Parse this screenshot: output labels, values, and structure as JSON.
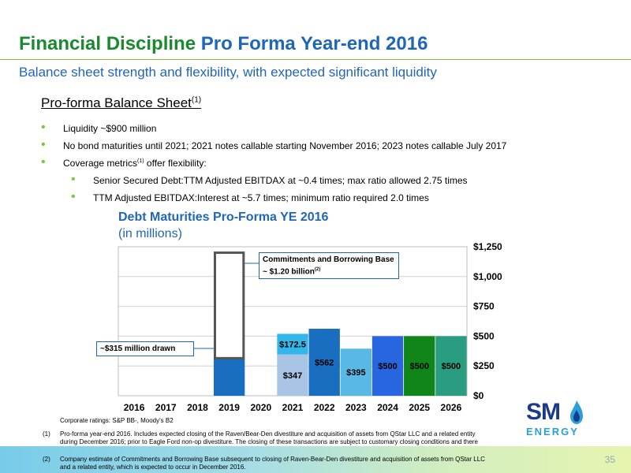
{
  "header": {
    "title_part1": "Financial Discipline",
    "title_part2": "Pro Forma Year-end 2016",
    "subtitle": "Balance sheet strength and flexibility, with expected significant liquidity"
  },
  "section": {
    "heading": "Pro-forma Balance Sheet",
    "heading_sup": "(1)"
  },
  "bullets": {
    "liquidity": "Liquidity ~$900 million",
    "maturities": "No bond maturities until 2021; 2021 notes callable starting November 2016; 2023 notes callable July 2017",
    "coverage_pre": "Coverage metrics",
    "coverage_sup": "(1)",
    "coverage_post": " offer flexibility:",
    "sub1": "Senior Secured Debt:TTM Adjusted EBITDAX at ~0.4 times; max ratio allowed 2.75 times",
    "sub2": "TTM Adjusted EBITDAX:Interest at ~5.7 times; minimum ratio required 2.0 times"
  },
  "chart_data": {
    "type": "bar",
    "title": "Debt Maturities Pro-Forma YE 2016",
    "subtitle": "(in millions)",
    "categories": [
      "2016",
      "2017",
      "2018",
      "2019",
      "2020",
      "2021",
      "2022",
      "2023",
      "2024",
      "2025",
      "2026"
    ],
    "ylim": [
      0,
      1250
    ],
    "yticks": [
      0,
      250,
      500,
      750,
      1000,
      1250
    ],
    "ytick_labels": [
      "$0",
      "$250",
      "$500",
      "$750",
      "$1,000",
      "$1,250"
    ],
    "grid": true,
    "segments": [
      {
        "category": "2019",
        "value": 315,
        "base": 0,
        "color": "#1a6ec0",
        "label": ""
      },
      {
        "category": "2019",
        "value": 885,
        "base": 315,
        "color": "#ffffff",
        "outline": "#555555",
        "label": ""
      },
      {
        "category": "2021",
        "value": 347,
        "base": 0,
        "color": "#a9c4e4",
        "label": "$347"
      },
      {
        "category": "2021",
        "value": 172.5,
        "base": 347,
        "color": "#33b7ea",
        "label": "$172.5"
      },
      {
        "category": "2022",
        "value": 562,
        "base": 0,
        "color": "#1a6ec0",
        "label": "$562"
      },
      {
        "category": "2023",
        "value": 395,
        "base": 0,
        "color": "#5ab8e4",
        "label": "$395"
      },
      {
        "category": "2024",
        "value": 500,
        "base": 0,
        "color": "#2866e0",
        "label": "$500"
      },
      {
        "category": "2025",
        "value": 500,
        "base": 0,
        "color": "#10851a",
        "label": "$500"
      },
      {
        "category": "2026",
        "value": 500,
        "base": 0,
        "color": "#2a9c80",
        "label": "$500"
      }
    ],
    "annotations": {
      "drawn": "~$315 million drawn",
      "commitments": "Commitments and Borrowing Base ~ $1.20 billion",
      "commitments_sup": "(2)"
    }
  },
  "ratings": "Corporate ratings: S&P BB-, Moody's B2",
  "footnotes": [
    {
      "num": "(1)",
      "text": "Pro-forma year-end 2016. Includes expected closing of the Raven/Bear-Den divestiture and acquisition of assets from QStar LLC and a related entity during December 2016; prior to Eagle Ford non-op divestiture. The closing of these transactions are subject to customary closing conditions and there can be no assurance that either of these transactions will close on the expected closing dates or at all."
    },
    {
      "num": "(2)",
      "text": "Company estimate of Commitments and Borrowing Base subsequent to closing of Raven-Bear-Den divestiture and acquisition of assets from QStar LLC and a related entity, which is expected to occur in December 2016."
    }
  ],
  "logo": {
    "top": "SM",
    "bottom": "ENERGY"
  },
  "page_number": "35"
}
